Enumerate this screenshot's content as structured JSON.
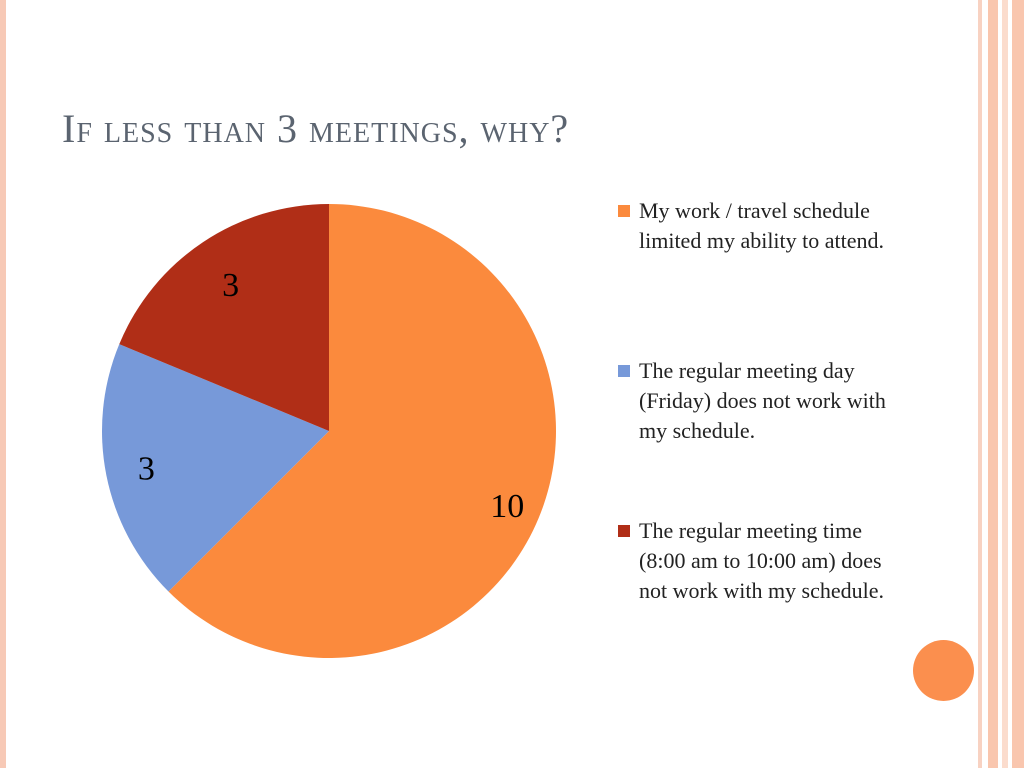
{
  "slide": {
    "title": "If less than 3 meetings, why?"
  },
  "chart_data": {
    "type": "pie",
    "categories": [
      "My work / travel schedule limited my ability to attend.",
      "The regular meeting day (Friday) does not work with my schedule.",
      "The regular meeting time (8:00 am to 10:00 am) does not work with my schedule."
    ],
    "values": [
      10,
      3,
      3
    ],
    "data_labels": [
      "10",
      "3",
      "3"
    ],
    "colors": [
      "#fb8a3d",
      "#7799d9",
      "#b02e17"
    ],
    "legend_position": "right",
    "start_angle_deg": 0,
    "direction": "clockwise"
  },
  "decor": {
    "circle_color": "#fb8f4e"
  }
}
